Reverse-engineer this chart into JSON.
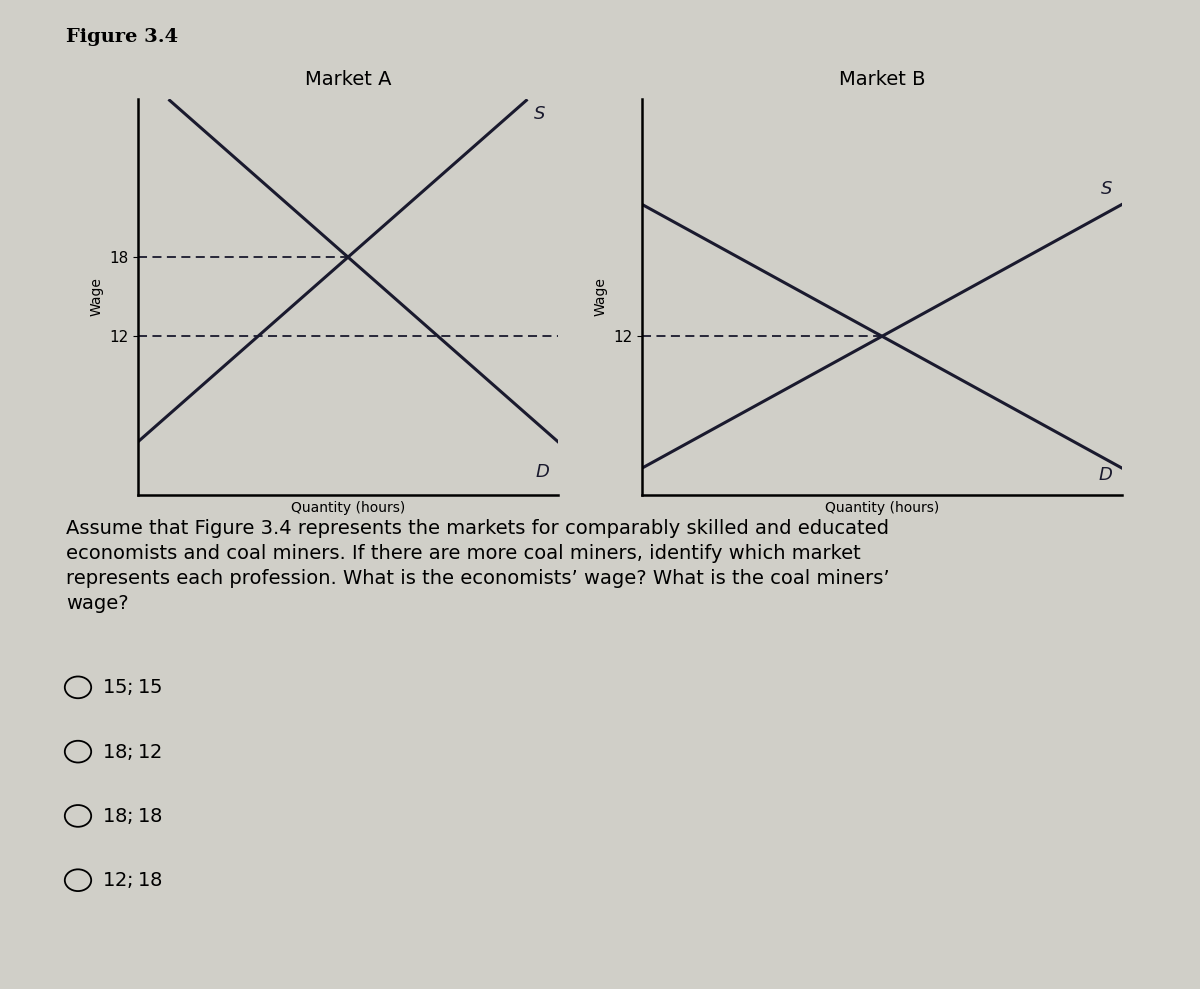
{
  "figure_title": "Figure 3.4",
  "market_a_title": "Market A",
  "market_b_title": "Market B",
  "xlabel": "Quantity (hours)",
  "ylabel": "Wage",
  "market_a_eq_wage": 18,
  "market_a_ref_wage": 12,
  "market_b_eq_wage": 12,
  "bg_color": "#d0cfc8",
  "line_color": "#1a1a2e",
  "question_text": "Assume that Figure 3.4 represents the markets for comparably skilled and educated\neconomists and coal miners. If there are more coal miners, identify which market\nrepresents each profession. What is the economists’ wage? What is the coal miners’\nwage?",
  "choices": [
    "$15; $15",
    "$18; $12",
    "$18; $18",
    "$12; $18"
  ],
  "title_fontsize": 14,
  "axis_label_fontsize": 10,
  "tick_fontsize": 11,
  "sd_label_fontsize": 13,
  "question_fontsize": 14,
  "choice_fontsize": 14,
  "fig_title_fontsize": 14
}
